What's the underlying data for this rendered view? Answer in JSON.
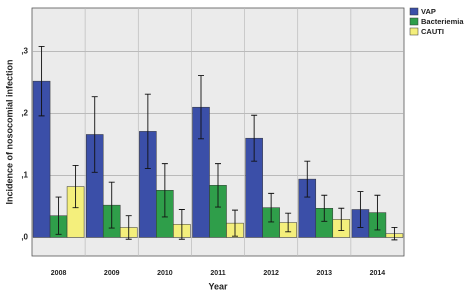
{
  "chart_data": {
    "type": "bar",
    "x_label": "Year",
    "y_label": "Incidence of nosocomial infection",
    "categories": [
      "2008",
      "2009",
      "2010",
      "2011",
      "2012",
      "2013",
      "2014"
    ],
    "series": [
      {
        "name": "VAP",
        "color": "#3b4fa8",
        "values": [
          0.252,
          0.166,
          0.171,
          0.21,
          0.16,
          0.094,
          0.045
        ],
        "errors": [
          0.056,
          0.061,
          0.06,
          0.051,
          0.037,
          0.029,
          0.029
        ]
      },
      {
        "name": "Bacteriemia",
        "color": "#2f9e4a",
        "values": [
          0.035,
          0.052,
          0.076,
          0.084,
          0.048,
          0.047,
          0.04
        ],
        "errors": [
          0.03,
          0.037,
          0.043,
          0.035,
          0.023,
          0.021,
          0.028
        ]
      },
      {
        "name": "CAUTI",
        "color": "#f4ef7c",
        "values": [
          0.082,
          0.016,
          0.021,
          0.023,
          0.024,
          0.029,
          0.006
        ],
        "errors": [
          0.034,
          0.019,
          0.024,
          0.021,
          0.015,
          0.018,
          0.01
        ]
      }
    ],
    "ylim": [
      -0.03,
      0.37
    ],
    "yticks": [
      {
        "value": 0,
        "label": ",0"
      },
      {
        "value": 0.1,
        "label": ",1"
      },
      {
        "value": 0.2,
        "label": ",2"
      },
      {
        "value": 0.3,
        "label": ",3"
      }
    ],
    "grid": true,
    "legend": "top-right"
  }
}
